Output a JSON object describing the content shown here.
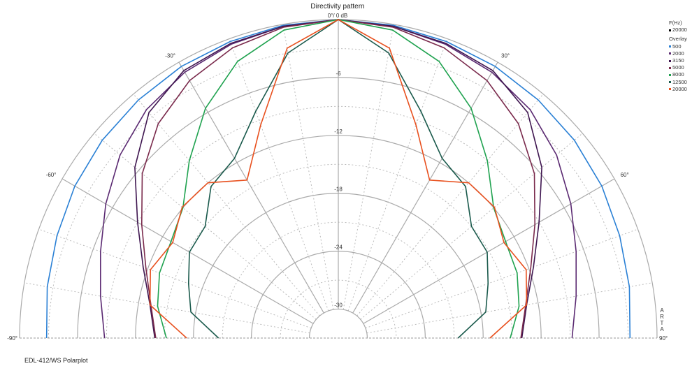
{
  "chart_data": {
    "type": "polar",
    "title": "Directivity pattern",
    "center_label": "0°/ 0 dB",
    "radial_unit": "dB",
    "radial_range": [
      -33,
      0
    ],
    "radial_ticks": [
      -6,
      -12,
      -18,
      -24,
      -30
    ],
    "angle_labels": [
      {
        "angle": -30,
        "text": "-30°"
      },
      {
        "angle": 30,
        "text": "30°"
      },
      {
        "angle": -60,
        "text": "-60°"
      },
      {
        "angle": 60,
        "text": "60°"
      },
      {
        "angle": -90,
        "text": "-90°"
      },
      {
        "angle": 90,
        "text": "90°"
      }
    ],
    "angles_deg": [
      0,
      10,
      20,
      30,
      40,
      50,
      60,
      70,
      80,
      90
    ],
    "symmetric": true,
    "grid": true,
    "legend_position": "right",
    "legend": {
      "header": "F(Hz)",
      "main": {
        "name": "20000",
        "color": "#000000"
      },
      "overlay_label": "Overlay"
    },
    "series": [
      {
        "name": "500",
        "color": "#2a80d5",
        "values": [
          0,
          -0.1,
          -0.3,
          -0.5,
          -0.8,
          -1.1,
          -1.5,
          -2.0,
          -2.4,
          -2.8
        ]
      },
      {
        "name": "2000",
        "color": "#5b2a72",
        "values": [
          0,
          -0.2,
          -0.6,
          -1.2,
          -2.1,
          -3.5,
          -5.2,
          -6.8,
          -8.0,
          -8.8
        ]
      },
      {
        "name": "3150",
        "color": "#3f1650",
        "values": [
          0,
          -0.2,
          -0.5,
          -1.0,
          -2.5,
          -5.5,
          -9.0,
          -11.5,
          -13.2,
          -14.0
        ]
      },
      {
        "name": "5000",
        "color": "#7a2a4c",
        "values": [
          0,
          -0.3,
          -1.0,
          -2.2,
          -4.0,
          -6.5,
          -9.5,
          -11.8,
          -13.3,
          -14.1
        ]
      },
      {
        "name": "8000",
        "color": "#1fa24f",
        "values": [
          0,
          -0.6,
          -2.5,
          -5.5,
          -9.0,
          -12.0,
          -13.0,
          -13.3,
          -14.0,
          -15.2
        ]
      },
      {
        "name": "12500",
        "color": "#1a5a4c",
        "values": [
          0,
          -3.0,
          -8.0,
          -11.5,
          -12.5,
          -15.0,
          -15.2,
          -16.5,
          -17.5,
          -20.6
        ]
      },
      {
        "name": "20000",
        "color": "#e8501e",
        "values": [
          0,
          -2.5,
          -9.5,
          -14.1,
          -12.0,
          -11.9,
          -13.2,
          -12.3,
          -13.2,
          -17.3
        ]
      }
    ]
  },
  "footer": "EDL-412/WS Polarplot",
  "watermark": "ARTA"
}
